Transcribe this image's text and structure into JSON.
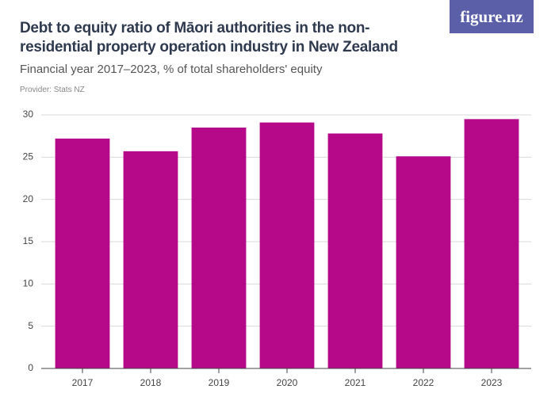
{
  "chart_data": {
    "type": "bar",
    "title": "Debt to equity ratio of Māori authorities in the non-residential property operation industry in New Zealand",
    "subtitle": "Financial year 2017–2023, % of total shareholders' equity",
    "provider": "Provider: Stats NZ",
    "logo": "figure.nz",
    "categories": [
      "2017",
      "2018",
      "2019",
      "2020",
      "2021",
      "2022",
      "2023"
    ],
    "values": [
      27.2,
      25.7,
      28.5,
      29.1,
      27.8,
      25.1,
      29.5
    ],
    "color": "#b5098a",
    "ylim": [
      0,
      30
    ],
    "yticks": [
      0,
      5,
      10,
      15,
      20,
      25,
      30
    ],
    "grid": true
  }
}
